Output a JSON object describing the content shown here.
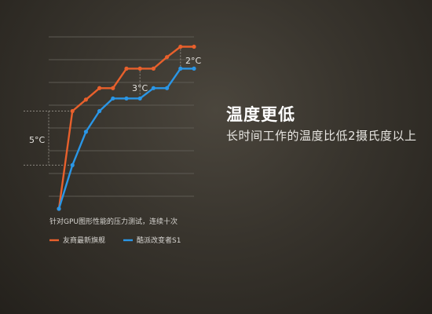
{
  "headline": {
    "title": "温度更低",
    "subtitle": "长时间工作的温度比低2摄氏度以上"
  },
  "chart_data": {
    "type": "line",
    "title": "",
    "caption": "针对GPU图形性能的压力测试，连续十次",
    "xlabel": "",
    "ylabel": "",
    "x": [
      0,
      1,
      2,
      3,
      4,
      5,
      6,
      7,
      8,
      9,
      10
    ],
    "ylim": [
      0,
      14
    ],
    "grid": true,
    "legend": "bottom",
    "series": [
      {
        "name": "友商最新旗舰",
        "color": "#e8602c",
        "values": [
          0,
          8.5,
          9.5,
          10.5,
          10.5,
          12.2,
          12.2,
          12.2,
          13.2,
          14.1,
          14.1
        ]
      },
      {
        "name": "酷派改变者S1",
        "color": "#2a96e6",
        "values": [
          0,
          3.8,
          6.7,
          8.5,
          9.6,
          9.6,
          9.6,
          10.5,
          10.5,
          12.2,
          12.2
        ]
      }
    ],
    "annotations": [
      {
        "label": "5°C",
        "x": 1,
        "from": 3.8,
        "to": 8.5
      },
      {
        "label": "3°C",
        "x": 6,
        "from": 9.6,
        "to": 12.2
      },
      {
        "label": "2°C",
        "x": 9,
        "from": 12.2,
        "to": 14.1
      }
    ]
  }
}
